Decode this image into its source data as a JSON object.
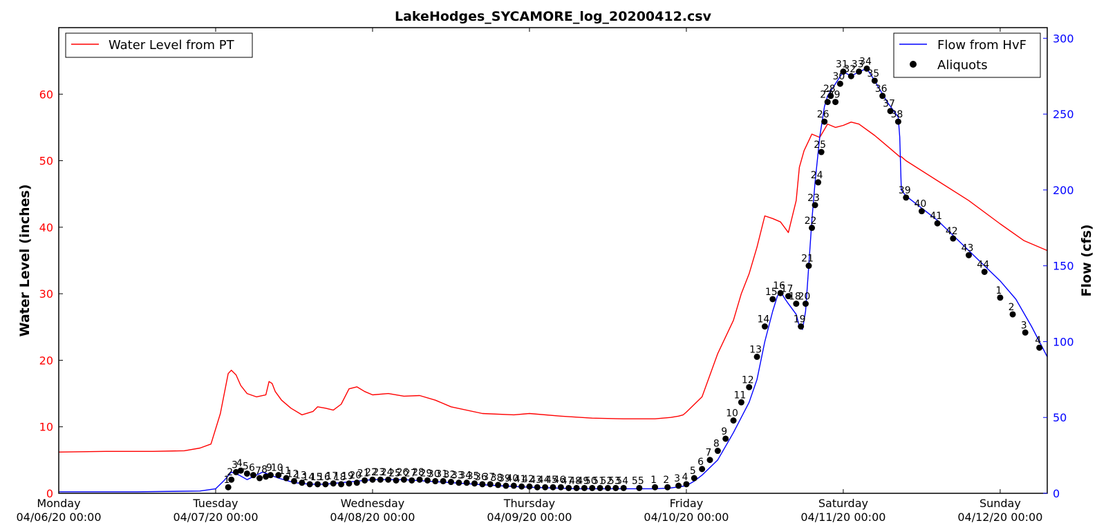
{
  "chart_data": {
    "type": "line",
    "title": "LakeHodges_SYCAMORE_log_20200412.csv",
    "x_tick_labels": [
      {
        "day": "Monday",
        "date": "04/06/20 00:00"
      },
      {
        "day": "Tuesday",
        "date": "04/07/20 00:00"
      },
      {
        "day": "Wednesday",
        "date": "04/08/20 00:00"
      },
      {
        "day": "Thursday",
        "date": "04/09/20 00:00"
      },
      {
        "day": "Friday",
        "date": "04/10/20 00:00"
      },
      {
        "day": "Saturday",
        "date": "04/11/20 00:00"
      },
      {
        "day": "Sunday",
        "date": "04/12/20 00:00"
      }
    ],
    "x_tick_positions_days": [
      0,
      1,
      2,
      3,
      4,
      5,
      6
    ],
    "xlim_days": [
      0,
      6.3
    ],
    "left_axis": {
      "label": "Water Level (inches)",
      "color": "#ff0000",
      "ylim": [
        0,
        70
      ],
      "ticks": [
        0,
        10,
        20,
        30,
        40,
        50,
        60
      ]
    },
    "right_axis": {
      "label": "Flow (cfs)",
      "color": "#0000ff",
      "ylim": [
        0,
        307
      ],
      "ticks": [
        0,
        50,
        100,
        150,
        200,
        250,
        300
      ]
    },
    "legend_left": {
      "position": "top-left",
      "entries": [
        {
          "label": "Water Level from PT",
          "color": "#ff0000"
        }
      ]
    },
    "legend_right": {
      "position": "top-right",
      "entries": [
        {
          "label": "Flow from HvF",
          "color": "#0000ff"
        },
        {
          "label": "Aliquots",
          "color": "#000000"
        }
      ]
    },
    "series": [
      {
        "name": "Water Level from PT",
        "axis": "left",
        "color": "#ff0000",
        "x": [
          0,
          0.3,
          0.6,
          0.8,
          0.9,
          0.97,
          1.03,
          1.08,
          1.1,
          1.13,
          1.16,
          1.2,
          1.26,
          1.32,
          1.34,
          1.36,
          1.38,
          1.42,
          1.48,
          1.55,
          1.62,
          1.65,
          1.7,
          1.75,
          1.8,
          1.85,
          1.9,
          1.95,
          2.0,
          2.1,
          2.2,
          2.3,
          2.4,
          2.5,
          2.7,
          2.9,
          3.0,
          3.2,
          3.4,
          3.6,
          3.8,
          3.9,
          3.95,
          3.98,
          4.0,
          4.1,
          4.2,
          4.3,
          4.35,
          4.4,
          4.45,
          4.5,
          4.55,
          4.6,
          4.65,
          4.7,
          4.72,
          4.75,
          4.78,
          4.8,
          4.85,
          4.9,
          4.95,
          5.0,
          5.05,
          5.1,
          5.2,
          5.3,
          5.36,
          5.37,
          5.4,
          5.6,
          5.8,
          6.0,
          6.15,
          6.3
        ],
        "y": [
          6.2,
          6.3,
          6.3,
          6.4,
          6.8,
          7.4,
          12.0,
          18.0,
          18.5,
          17.8,
          16.2,
          15.0,
          14.5,
          14.8,
          16.8,
          16.5,
          15.3,
          14.0,
          12.8,
          11.8,
          12.3,
          13.0,
          12.8,
          12.5,
          13.4,
          15.7,
          16.0,
          15.3,
          14.8,
          15.0,
          14.6,
          14.7,
          14.0,
          13.0,
          12.0,
          11.8,
          12.0,
          11.6,
          11.3,
          11.2,
          11.2,
          11.4,
          11.6,
          11.8,
          12.2,
          14.5,
          21.0,
          26.0,
          30.0,
          33.0,
          37.0,
          41.7,
          41.3,
          40.8,
          39.2,
          44.0,
          49.0,
          51.5,
          53.0,
          54.0,
          53.5,
          55.5,
          55.0,
          55.3,
          55.8,
          55.5,
          53.8,
          51.8,
          50.6,
          50.6,
          50.0,
          47.0,
          44.0,
          40.5,
          38.0,
          36.5
        ]
      },
      {
        "name": "Flow from HvF",
        "axis": "right",
        "color": "#0000ff",
        "x": [
          0,
          0.5,
          0.9,
          1.0,
          1.05,
          1.1,
          1.15,
          1.2,
          1.3,
          1.35,
          1.4,
          1.5,
          1.6,
          1.7,
          1.8,
          1.9,
          2.0,
          2.2,
          2.5,
          2.8,
          3.0,
          3.3,
          3.6,
          3.8,
          3.9,
          4.0,
          4.05,
          4.1,
          4.2,
          4.3,
          4.4,
          4.45,
          4.5,
          4.55,
          4.58,
          4.6,
          4.63,
          4.65,
          4.7,
          4.72,
          4.74,
          4.76,
          4.78,
          4.8,
          4.82,
          4.85,
          4.88,
          4.9,
          4.95,
          5.0,
          5.05,
          5.1,
          5.15,
          5.2,
          5.28,
          5.35,
          5.36,
          5.37,
          5.4,
          5.6,
          5.8,
          6.0,
          6.1,
          6.2,
          6.3
        ],
        "y": [
          1,
          1,
          1.5,
          3,
          8,
          14,
          12,
          9,
          14,
          12,
          10,
          7,
          6,
          6,
          7,
          8,
          9,
          9,
          7,
          5,
          4,
          3,
          3,
          3,
          3.5,
          5,
          8,
          12,
          22,
          40,
          60,
          75,
          100,
          120,
          130,
          133,
          128,
          125,
          118,
          110,
          108,
          120,
          150,
          180,
          205,
          235,
          255,
          262,
          270,
          278,
          275,
          278,
          280,
          272,
          258,
          248,
          235,
          200,
          196,
          180,
          160,
          140,
          128,
          110,
          90
        ]
      }
    ],
    "aliquots": {
      "name": "Aliquots",
      "axis": "right",
      "color": "#000000",
      "points": [
        {
          "x": 1.08,
          "y": 4,
          "label": "1"
        },
        {
          "x": 1.1,
          "y": 9,
          "label": "2"
        },
        {
          "x": 1.13,
          "y": 14,
          "label": "3"
        },
        {
          "x": 1.16,
          "y": 15,
          "label": "4"
        },
        {
          "x": 1.2,
          "y": 13,
          "label": "5"
        },
        {
          "x": 1.24,
          "y": 12,
          "label": "6"
        },
        {
          "x": 1.28,
          "y": 10,
          "label": "7"
        },
        {
          "x": 1.32,
          "y": 11,
          "label": "8"
        },
        {
          "x": 1.35,
          "y": 12,
          "label": "9"
        },
        {
          "x": 1.4,
          "y": 12,
          "label": "10"
        },
        {
          "x": 1.45,
          "y": 10,
          "label": "11"
        },
        {
          "x": 1.5,
          "y": 8,
          "label": "12"
        },
        {
          "x": 1.55,
          "y": 7,
          "label": "13"
        },
        {
          "x": 1.6,
          "y": 6,
          "label": "14"
        },
        {
          "x": 1.65,
          "y": 6,
          "label": "15"
        },
        {
          "x": 1.7,
          "y": 6,
          "label": "16"
        },
        {
          "x": 1.75,
          "y": 6.5,
          "label": "17"
        },
        {
          "x": 1.8,
          "y": 6,
          "label": "18"
        },
        {
          "x": 1.85,
          "y": 6.5,
          "label": "19"
        },
        {
          "x": 1.9,
          "y": 7,
          "label": "20"
        },
        {
          "x": 1.95,
          "y": 8.5,
          "label": "21"
        },
        {
          "x": 2.0,
          "y": 9,
          "label": "22"
        },
        {
          "x": 2.05,
          "y": 9,
          "label": "23"
        },
        {
          "x": 2.1,
          "y": 9,
          "label": "24"
        },
        {
          "x": 2.15,
          "y": 8.5,
          "label": "25"
        },
        {
          "x": 2.2,
          "y": 9,
          "label": "26"
        },
        {
          "x": 2.25,
          "y": 8.5,
          "label": "27"
        },
        {
          "x": 2.3,
          "y": 9,
          "label": "28"
        },
        {
          "x": 2.35,
          "y": 8.5,
          "label": "29"
        },
        {
          "x": 2.4,
          "y": 8,
          "label": "30"
        },
        {
          "x": 2.45,
          "y": 8,
          "label": "31"
        },
        {
          "x": 2.5,
          "y": 7.5,
          "label": "32"
        },
        {
          "x": 2.55,
          "y": 7,
          "label": "33"
        },
        {
          "x": 2.6,
          "y": 7,
          "label": "34"
        },
        {
          "x": 2.65,
          "y": 6.5,
          "label": "35"
        },
        {
          "x": 2.7,
          "y": 6,
          "label": "36"
        },
        {
          "x": 2.75,
          "y": 6,
          "label": "37"
        },
        {
          "x": 2.8,
          "y": 5.5,
          "label": "38"
        },
        {
          "x": 2.85,
          "y": 5,
          "label": "39"
        },
        {
          "x": 2.9,
          "y": 5,
          "label": "40"
        },
        {
          "x": 2.95,
          "y": 4.5,
          "label": "41"
        },
        {
          "x": 3.0,
          "y": 4.5,
          "label": "42"
        },
        {
          "x": 3.05,
          "y": 4,
          "label": "43"
        },
        {
          "x": 3.1,
          "y": 4,
          "label": "44"
        },
        {
          "x": 3.15,
          "y": 4,
          "label": "45"
        },
        {
          "x": 3.2,
          "y": 4,
          "label": "46"
        },
        {
          "x": 3.25,
          "y": 3.5,
          "label": "47"
        },
        {
          "x": 3.3,
          "y": 3.5,
          "label": "48"
        },
        {
          "x": 3.35,
          "y": 3.5,
          "label": "49"
        },
        {
          "x": 3.4,
          "y": 3.5,
          "label": "50"
        },
        {
          "x": 3.45,
          "y": 3.5,
          "label": "51"
        },
        {
          "x": 3.5,
          "y": 3.5,
          "label": "52"
        },
        {
          "x": 3.55,
          "y": 3.5,
          "label": "53"
        },
        {
          "x": 3.6,
          "y": 3.5,
          "label": "54"
        },
        {
          "x": 3.7,
          "y": 3.5,
          "label": "55"
        },
        {
          "x": 3.8,
          "y": 4,
          "label": "1"
        },
        {
          "x": 3.88,
          "y": 4,
          "label": "2"
        },
        {
          "x": 3.95,
          "y": 5,
          "label": "3"
        },
        {
          "x": 4.0,
          "y": 6,
          "label": "4"
        },
        {
          "x": 4.05,
          "y": 10,
          "label": "5"
        },
        {
          "x": 4.1,
          "y": 16,
          "label": "6"
        },
        {
          "x": 4.15,
          "y": 22,
          "label": "7"
        },
        {
          "x": 4.2,
          "y": 28,
          "label": "8"
        },
        {
          "x": 4.25,
          "y": 36,
          "label": "9"
        },
        {
          "x": 4.3,
          "y": 48,
          "label": "10"
        },
        {
          "x": 4.35,
          "y": 60,
          "label": "11"
        },
        {
          "x": 4.4,
          "y": 70,
          "label": "12"
        },
        {
          "x": 4.45,
          "y": 90,
          "label": "13"
        },
        {
          "x": 4.5,
          "y": 110,
          "label": "14"
        },
        {
          "x": 4.55,
          "y": 128,
          "label": "15"
        },
        {
          "x": 4.6,
          "y": 132,
          "label": "16"
        },
        {
          "x": 4.65,
          "y": 130,
          "label": "17"
        },
        {
          "x": 4.7,
          "y": 125,
          "label": "18"
        },
        {
          "x": 4.73,
          "y": 110,
          "label": "19"
        },
        {
          "x": 4.76,
          "y": 125,
          "label": "20"
        },
        {
          "x": 4.78,
          "y": 150,
          "label": "21"
        },
        {
          "x": 4.8,
          "y": 175,
          "label": "22"
        },
        {
          "x": 4.82,
          "y": 190,
          "label": "23"
        },
        {
          "x": 4.84,
          "y": 205,
          "label": "24"
        },
        {
          "x": 4.86,
          "y": 225,
          "label": "25"
        },
        {
          "x": 4.88,
          "y": 245,
          "label": "26"
        },
        {
          "x": 4.9,
          "y": 258,
          "label": "27"
        },
        {
          "x": 4.92,
          "y": 262,
          "label": "28"
        },
        {
          "x": 4.95,
          "y": 258,
          "label": "29"
        },
        {
          "x": 4.98,
          "y": 270,
          "label": "30"
        },
        {
          "x": 5.0,
          "y": 278,
          "label": "31"
        },
        {
          "x": 5.05,
          "y": 275,
          "label": "32"
        },
        {
          "x": 5.1,
          "y": 278,
          "label": "33"
        },
        {
          "x": 5.15,
          "y": 280,
          "label": "34"
        },
        {
          "x": 5.2,
          "y": 272,
          "label": "35"
        },
        {
          "x": 5.25,
          "y": 262,
          "label": "36"
        },
        {
          "x": 5.3,
          "y": 252,
          "label": "37"
        },
        {
          "x": 5.35,
          "y": 245,
          "label": "38"
        },
        {
          "x": 5.4,
          "y": 195,
          "label": "39"
        },
        {
          "x": 5.5,
          "y": 186,
          "label": "40"
        },
        {
          "x": 5.6,
          "y": 178,
          "label": "41"
        },
        {
          "x": 5.7,
          "y": 168,
          "label": "42"
        },
        {
          "x": 5.8,
          "y": 157,
          "label": "43"
        },
        {
          "x": 5.9,
          "y": 146,
          "label": "44"
        },
        {
          "x": 6.0,
          "y": 129,
          "label": "1"
        },
        {
          "x": 6.08,
          "y": 118,
          "label": "2"
        },
        {
          "x": 6.16,
          "y": 106,
          "label": "3"
        },
        {
          "x": 6.25,
          "y": 96,
          "label": "4"
        }
      ]
    }
  }
}
